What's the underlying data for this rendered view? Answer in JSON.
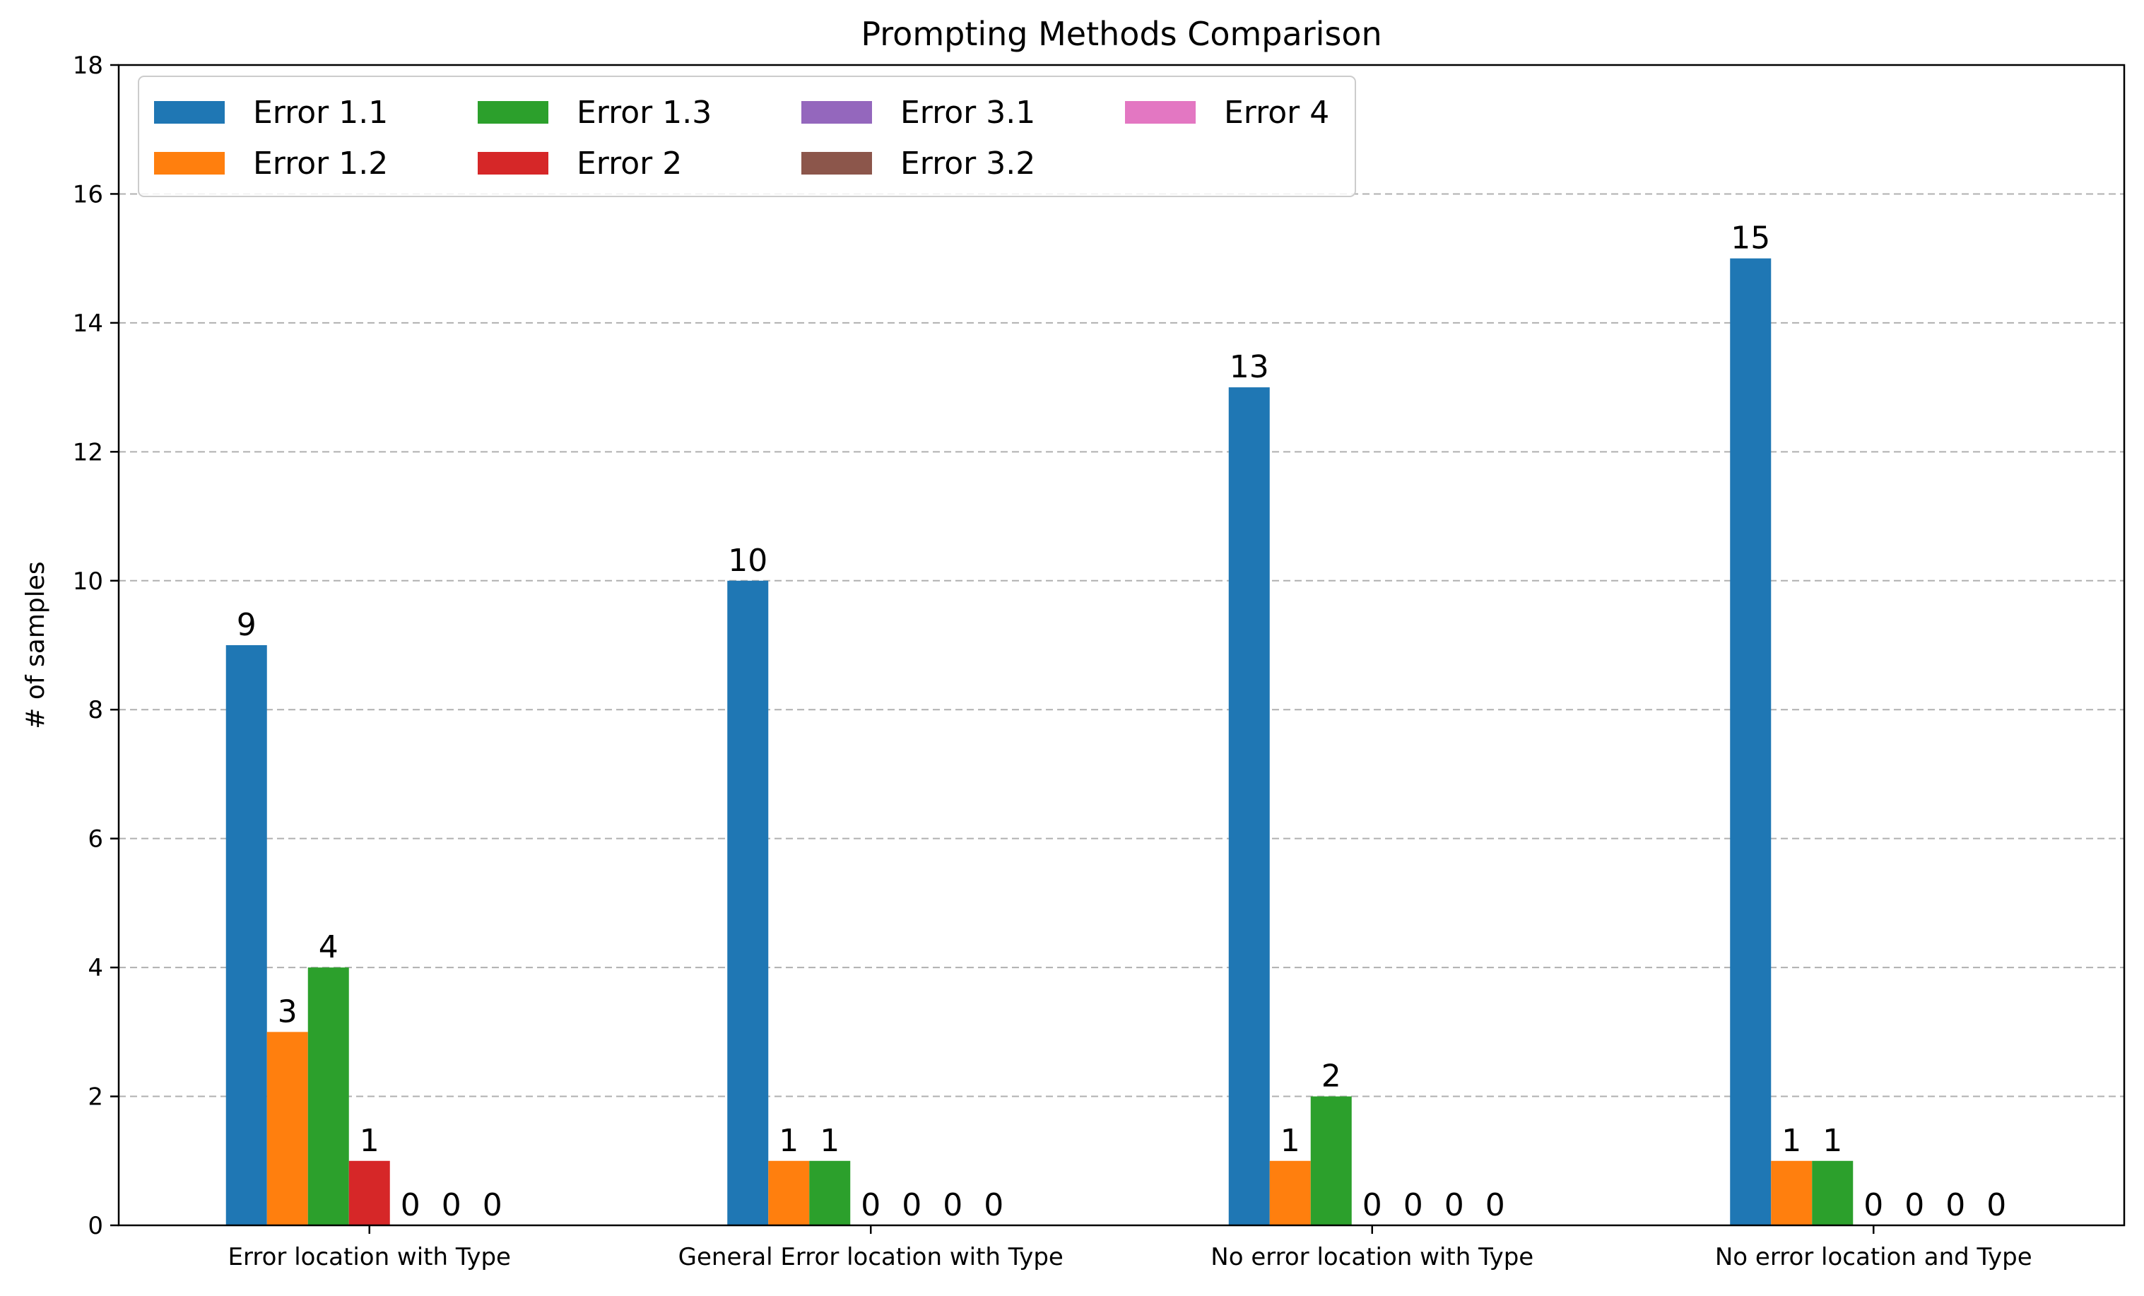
{
  "chart_data": {
    "type": "bar",
    "title": "Prompting Methods Comparison",
    "xlabel": "",
    "ylabel": "# of samples",
    "ylim": [
      0,
      18
    ],
    "yticks": [
      0,
      2,
      4,
      6,
      8,
      10,
      12,
      14,
      16,
      18
    ],
    "grid": "y-dashed",
    "legend_position": "top-left",
    "legend_columns": 4,
    "categories": [
      "Error location with Type",
      "General Error location with Type",
      "No error location with Type",
      "No error location and Type"
    ],
    "series": [
      {
        "name": "Error 1.1",
        "color": "#1f77b4",
        "values": [
          9,
          10,
          13,
          15
        ]
      },
      {
        "name": "Error 1.2",
        "color": "#ff7f0e",
        "values": [
          3,
          1,
          1,
          1
        ]
      },
      {
        "name": "Error 1.3",
        "color": "#2ca02c",
        "values": [
          4,
          1,
          2,
          1
        ]
      },
      {
        "name": "Error 2",
        "color": "#d62728",
        "values": [
          1,
          0,
          0,
          0
        ]
      },
      {
        "name": "Error 3.1",
        "color": "#9467bd",
        "values": [
          0,
          0,
          0,
          0
        ]
      },
      {
        "name": "Error 3.2",
        "color": "#8c564b",
        "values": [
          0,
          0,
          0,
          0
        ]
      },
      {
        "name": "Error 4",
        "color": "#e377c2",
        "values": [
          0,
          0,
          0,
          0
        ]
      }
    ]
  }
}
